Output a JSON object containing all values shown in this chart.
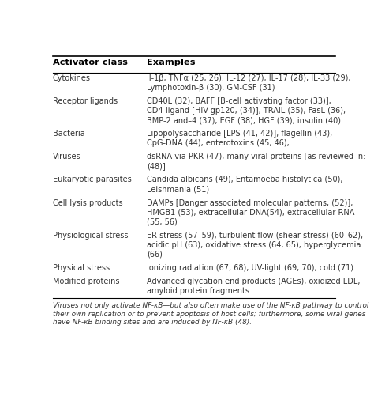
{
  "title_col1": "Activator class",
  "title_col2": "Examples",
  "bg_color": "#ffffff",
  "header_color": "#000000",
  "text_color": "#333333",
  "footer_color": "#333333",
  "footer_lines": [
    "Viruses not only activate NF-κB—but also often make use of the NF-κB pathway to control",
    "their own replication or to prevent apoptosis of host cells; furthermore, some viral genes",
    "have NF-κB binding sites and are induced by NF-κB (48)."
  ],
  "rows": [
    {
      "class": "Cytokines",
      "examples": [
        "Il-1β, TNFα (25, 26), IL-12 (27), IL-17 (28), IL-33 (29),",
        "Lymphotoxin-β (30), GM-CSF (31)"
      ]
    },
    {
      "class": "Receptor ligands",
      "examples": [
        "CD40L (32), BAFF [B-cell activating factor (33)],",
        "CD4-ligand [HIV-gp120, (34)], TRAIL (35), FasL (36),",
        "BMP-2 and–4 (37), EGF (38), HGF (39), insulin (40)"
      ]
    },
    {
      "class": "Bacteria",
      "examples": [
        "Lipopolysaccharide [LPS (41, 42)], flagellin (43),",
        "CpG-DNA (44), enterotoxins (45, 46),"
      ]
    },
    {
      "class": "Viruses",
      "examples": [
        "dsRNA via PKR (47), many viral proteins [as reviewed in:",
        "(48)]"
      ]
    },
    {
      "class": "Eukaryotic parasites",
      "examples": [
        "Candida albicans (49), Entamoeba histolytica (50),",
        "Leishmania (51)"
      ]
    },
    {
      "class": "Cell lysis products",
      "examples": [
        "DAMPs [Danger associated molecular patterns, (52)],",
        "HMGB1 (53), extracellular DNA(54), extracellular RNA",
        "(55, 56)"
      ]
    },
    {
      "class": "Physiological stress",
      "examples": [
        "ER stress (57–59), turbulent flow (shear stress) (60–62),",
        "acidic pH (63), oxidative stress (64, 65), hyperglycemia",
        "(66)"
      ]
    },
    {
      "class": "Physical stress",
      "examples": [
        "Ionizing radiation (67, 68), UV-light (69, 70), cold (71)"
      ]
    },
    {
      "class": "Modified proteins",
      "examples": [
        "Advanced glycation end products (AGEs), oxidized LDL,",
        "amyloid protein fragments"
      ]
    }
  ]
}
